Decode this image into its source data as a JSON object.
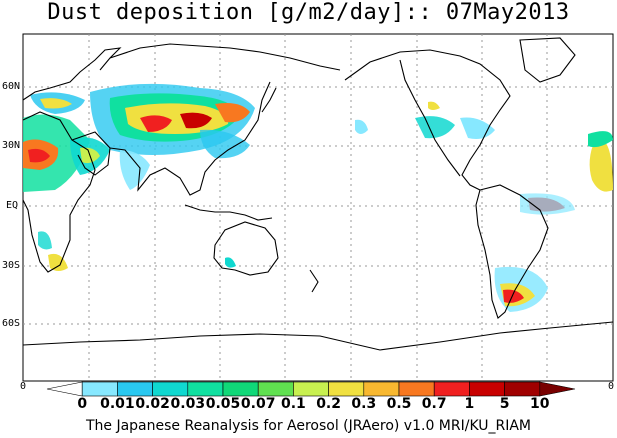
{
  "title": "Dust deposition [g/m2/day]:: 07May2013",
  "lat_labels": [
    "60N",
    "30N",
    "EQ",
    "30S",
    "60S"
  ],
  "axis_zero_left": "0",
  "axis_zero_right": "0",
  "colorbar": {
    "labels": [
      "0",
      "0.01",
      "0.02",
      "0.03",
      "0.05",
      "0.07",
      "0.1",
      "0.2",
      "0.3",
      "0.5",
      "0.7",
      "1",
      "5",
      "10"
    ],
    "colors": [
      "#ffffff",
      "#87e8ff",
      "#2ac8f0",
      "#10d8d0",
      "#10e0a0",
      "#10d878",
      "#60e050",
      "#c8f050",
      "#f0e040",
      "#f8b830",
      "#f87820",
      "#f02020",
      "#c80000",
      "#a00000",
      "#780000"
    ]
  },
  "credit": "The Japanese Reanalysis for Aerosol (JRAero) v1.0 MRI/KU_RIAM"
}
